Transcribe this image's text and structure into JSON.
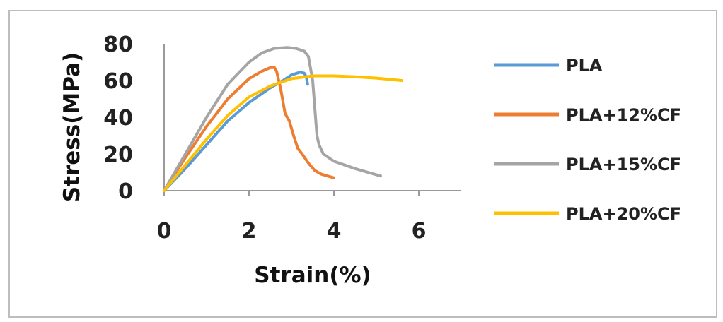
{
  "chart_data": {
    "type": "line",
    "title": "",
    "xlabel": "Strain(%)",
    "ylabel": "Stress(MPa)",
    "xlim": [
      0,
      7
    ],
    "ylim": [
      0,
      80
    ],
    "xticks": [
      0,
      2,
      4,
      6
    ],
    "yticks": [
      0,
      20,
      40,
      60,
      80
    ],
    "grid": false,
    "legend_position": "right",
    "series": [
      {
        "name": "PLA",
        "color": "#5B9BD5",
        "x": [
          0,
          0.5,
          1.0,
          1.5,
          2.0,
          2.5,
          2.8,
          3.0,
          3.2,
          3.3,
          3.35,
          3.38
        ],
        "y": [
          0,
          12,
          25,
          38,
          48,
          56,
          60,
          63,
          64.5,
          64,
          62,
          58
        ]
      },
      {
        "name": "PLA+12%CF",
        "color": "#ED7D31",
        "x": [
          0,
          0.5,
          1.0,
          1.5,
          2.0,
          2.3,
          2.5,
          2.6,
          2.65,
          2.75,
          2.85,
          2.95,
          3.05,
          3.15,
          3.25,
          3.4,
          3.55,
          3.7,
          3.85,
          4.0
        ],
        "y": [
          0,
          18,
          35,
          50,
          61,
          65,
          67,
          67,
          65,
          55,
          42,
          38,
          30,
          23,
          20,
          15,
          11,
          9,
          8,
          7
        ]
      },
      {
        "name": "PLA+15%CF",
        "color": "#A5A5A5",
        "x": [
          0,
          0.5,
          1.0,
          1.5,
          2.0,
          2.3,
          2.6,
          2.9,
          3.1,
          3.3,
          3.4,
          3.5,
          3.55,
          3.6,
          3.65,
          3.75,
          4.0,
          4.5,
          5.1
        ],
        "y": [
          0,
          20,
          40,
          58,
          70,
          75,
          77.5,
          78,
          77.5,
          76,
          73,
          60,
          45,
          30,
          25,
          20,
          16,
          12,
          8
        ]
      },
      {
        "name": "PLA+20%CF",
        "color": "#FFC000",
        "x": [
          0,
          0.5,
          1.0,
          1.5,
          2.0,
          2.5,
          3.0,
          3.5,
          4.0,
          4.5,
          5.0,
          5.6
        ],
        "y": [
          0,
          14,
          28,
          41,
          51,
          57,
          61,
          62.5,
          62.5,
          62,
          61.3,
          60
        ]
      }
    ]
  }
}
